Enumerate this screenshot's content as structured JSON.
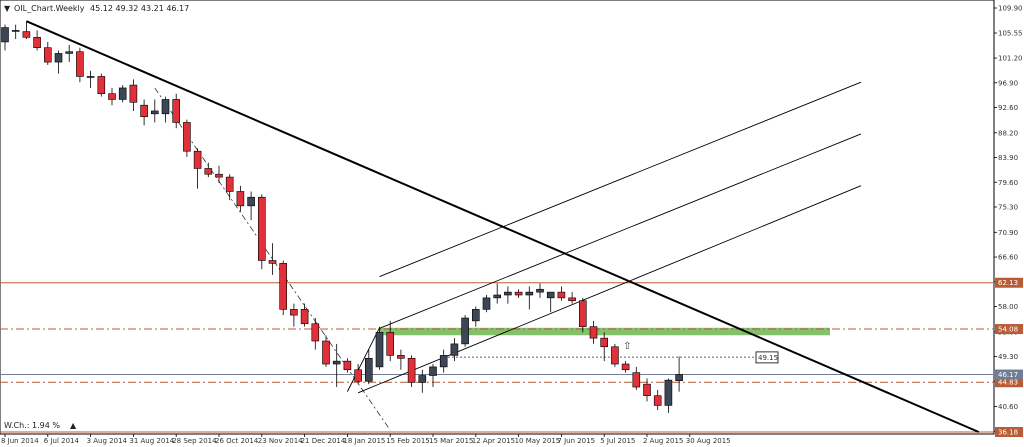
{
  "header": {
    "arrow": "▼",
    "symbol": "OIL_Chart.Weekly",
    "ohlc": "45.12 49.32 43.21 46.17"
  },
  "indicator": {
    "label": "W.Ch.: 1.94 %",
    "arrow": "▲",
    "color": "#2ea043"
  },
  "colors": {
    "bull": "#3d4654",
    "bear": "#e0303a",
    "level": "#b85c38",
    "green": "#5cab3c",
    "grid": "#e6e6e6"
  },
  "chart_data": {
    "type": "candlestick",
    "title": "OIL_Chart.Weekly",
    "ylim": [
      36.18,
      109.9
    ],
    "y_ticks": [
      "109.90",
      "105.55",
      "101.20",
      "96.90",
      "92.60",
      "88.20",
      "83.90",
      "79.60",
      "75.30",
      "70.90",
      "66.60",
      "62.30",
      "58.00",
      "53.60",
      "49.30",
      "45.00",
      "40.60",
      "36.30"
    ],
    "x_labels": [
      "8 Jun 2014",
      "6 Jul 2014",
      "3 Aug 2014",
      "31 Aug 2014",
      "28 Sep 2014",
      "26 Oct 2014",
      "23 Nov 2014",
      "21 Dec 2014",
      "18 Jan 2015",
      "15 Feb 2015",
      "15 Mar 2015",
      "12 Apr 2015",
      "10 May 2015",
      "7 Jun 2015",
      "5 Jul 2015",
      "2 Aug 2015",
      "30 Aug 2015"
    ],
    "candles": [
      {
        "o": 104.0,
        "h": 107.0,
        "l": 102.5,
        "c": 106.5
      },
      {
        "o": 106.0,
        "h": 107.0,
        "l": 104.5,
        "c": 106.0
      },
      {
        "o": 105.8,
        "h": 107.5,
        "l": 104.5,
        "c": 104.8
      },
      {
        "o": 104.8,
        "h": 106.0,
        "l": 102.5,
        "c": 103.0
      },
      {
        "o": 103.0,
        "h": 104.0,
        "l": 100.0,
        "c": 100.5
      },
      {
        "o": 100.5,
        "h": 102.5,
        "l": 98.5,
        "c": 102.0
      },
      {
        "o": 102.0,
        "h": 103.5,
        "l": 100.5,
        "c": 102.3
      },
      {
        "o": 102.3,
        "h": 103.0,
        "l": 97.0,
        "c": 98.0
      },
      {
        "o": 98.0,
        "h": 99.0,
        "l": 96.0,
        "c": 98.0
      },
      {
        "o": 98.0,
        "h": 98.5,
        "l": 94.5,
        "c": 95.0
      },
      {
        "o": 95.0,
        "h": 96.0,
        "l": 93.0,
        "c": 94.0
      },
      {
        "o": 94.0,
        "h": 96.5,
        "l": 93.5,
        "c": 96.0
      },
      {
        "o": 96.5,
        "h": 97.5,
        "l": 92.0,
        "c": 93.5
      },
      {
        "o": 93.0,
        "h": 94.0,
        "l": 89.5,
        "c": 91.0
      },
      {
        "o": 91.5,
        "h": 94.0,
        "l": 90.0,
        "c": 92.0
      },
      {
        "o": 91.5,
        "h": 94.5,
        "l": 90.0,
        "c": 94.0
      },
      {
        "o": 94.0,
        "h": 95.0,
        "l": 89.0,
        "c": 90.0
      },
      {
        "o": 90.0,
        "h": 90.5,
        "l": 84.0,
        "c": 85.0
      },
      {
        "o": 85.0,
        "h": 85.5,
        "l": 78.5,
        "c": 82.0
      },
      {
        "o": 82.0,
        "h": 83.0,
        "l": 80.5,
        "c": 81.0
      },
      {
        "o": 81.0,
        "h": 82.5,
        "l": 79.5,
        "c": 80.5
      },
      {
        "o": 80.5,
        "h": 81.0,
        "l": 76.5,
        "c": 78.0
      },
      {
        "o": 78.0,
        "h": 79.0,
        "l": 74.5,
        "c": 75.5
      },
      {
        "o": 75.5,
        "h": 78.0,
        "l": 73.0,
        "c": 77.0
      },
      {
        "o": 77.0,
        "h": 77.5,
        "l": 64.5,
        "c": 66.0
      },
      {
        "o": 66.0,
        "h": 69.0,
        "l": 63.5,
        "c": 65.5
      },
      {
        "o": 65.5,
        "h": 66.0,
        "l": 56.5,
        "c": 57.5
      },
      {
        "o": 57.5,
        "h": 58.5,
        "l": 54.5,
        "c": 56.5
      },
      {
        "o": 57.5,
        "h": 58.5,
        "l": 54.5,
        "c": 55.0
      },
      {
        "o": 55.0,
        "h": 56.0,
        "l": 50.5,
        "c": 52.0
      },
      {
        "o": 52.0,
        "h": 53.0,
        "l": 47.5,
        "c": 48.0
      },
      {
        "o": 48.0,
        "h": 51.5,
        "l": 44.0,
        "c": 48.5
      },
      {
        "o": 48.5,
        "h": 49.0,
        "l": 46.5,
        "c": 47.0
      },
      {
        "o": 47.0,
        "h": 48.0,
        "l": 44.5,
        "c": 45.0
      },
      {
        "o": 45.0,
        "h": 50.5,
        "l": 44.5,
        "c": 49.0
      },
      {
        "o": 47.5,
        "h": 54.5,
        "l": 47.0,
        "c": 53.5
      },
      {
        "o": 53.5,
        "h": 55.5,
        "l": 48.5,
        "c": 49.5
      },
      {
        "o": 49.5,
        "h": 50.5,
        "l": 47.0,
        "c": 49.0
      },
      {
        "o": 49.0,
        "h": 49.5,
        "l": 44.0,
        "c": 44.8
      },
      {
        "o": 44.8,
        "h": 47.0,
        "l": 43.0,
        "c": 46.0
      },
      {
        "o": 46.0,
        "h": 48.0,
        "l": 44.0,
        "c": 47.5
      },
      {
        "o": 47.5,
        "h": 50.5,
        "l": 46.5,
        "c": 49.5
      },
      {
        "o": 49.5,
        "h": 52.5,
        "l": 48.5,
        "c": 51.5
      },
      {
        "o": 51.5,
        "h": 56.5,
        "l": 51.0,
        "c": 56.0
      },
      {
        "o": 55.5,
        "h": 58.0,
        "l": 54.5,
        "c": 57.5
      },
      {
        "o": 57.5,
        "h": 60.0,
        "l": 57.0,
        "c": 59.5
      },
      {
        "o": 59.5,
        "h": 62.0,
        "l": 58.5,
        "c": 60.0
      },
      {
        "o": 60.0,
        "h": 61.5,
        "l": 58.5,
        "c": 60.5
      },
      {
        "o": 60.5,
        "h": 61.0,
        "l": 59.5,
        "c": 60.0
      },
      {
        "o": 60.0,
        "h": 61.5,
        "l": 57.5,
        "c": 60.5
      },
      {
        "o": 60.5,
        "h": 62.0,
        "l": 59.5,
        "c": 61.0
      },
      {
        "o": 59.5,
        "h": 60.5,
        "l": 57.0,
        "c": 60.5
      },
      {
        "o": 60.5,
        "h": 61.5,
        "l": 59.0,
        "c": 59.5
      },
      {
        "o": 59.5,
        "h": 60.5,
        "l": 58.5,
        "c": 59.0
      },
      {
        "o": 59.0,
        "h": 59.5,
        "l": 53.5,
        "c": 54.5
      },
      {
        "o": 54.5,
        "h": 55.5,
        "l": 51.5,
        "c": 52.5
      },
      {
        "o": 52.5,
        "h": 53.5,
        "l": 48.5,
        "c": 51.0
      },
      {
        "o": 51.0,
        "h": 51.5,
        "l": 47.5,
        "c": 48.0
      },
      {
        "o": 48.0,
        "h": 48.5,
        "l": 46.5,
        "c": 47.0
      },
      {
        "o": 46.5,
        "h": 47.5,
        "l": 43.5,
        "c": 44.0
      },
      {
        "o": 44.5,
        "h": 45.5,
        "l": 41.5,
        "c": 42.5
      },
      {
        "o": 42.5,
        "h": 43.5,
        "l": 40.0,
        "c": 40.8
      },
      {
        "o": 40.8,
        "h": 45.5,
        "l": 39.5,
        "c": 45.2
      },
      {
        "o": 45.1,
        "h": 49.3,
        "l": 43.2,
        "c": 46.17
      }
    ],
    "levels": [
      {
        "label": "62.13",
        "value": 62.13,
        "style": "solid",
        "color": "#b85c38"
      },
      {
        "label": "54.08",
        "value": 54.08,
        "style": "dashdot",
        "color": "#b85c38"
      },
      {
        "label": "44.83",
        "value": 44.83,
        "style": "dashdot",
        "color": "#b85c38"
      },
      {
        "label": "46.17",
        "value": 46.17,
        "style": "solid",
        "color": "#6f7d95"
      },
      {
        "label": "36.18",
        "value": 36.18,
        "style": "solid",
        "color": "#b85c38"
      }
    ],
    "green_zone": {
      "from": 53.0,
      "to": 54.3
    },
    "dotted_level": {
      "value": 49.2
    },
    "price_tag": {
      "label": "49.15",
      "value": 49.15
    },
    "trendline": {
      "from": {
        "i": 2,
        "v": 107.6
      },
      "to": {
        "i": 91,
        "v": 36.18
      }
    },
    "dashdot_line": {
      "from": {
        "i": 14,
        "v": 96.0
      },
      "to": {
        "i": 36,
        "v": 36.5
      }
    },
    "pitchfork": {
      "median": {
        "from": {
          "i": 35,
          "v": 54.2
        },
        "to": {
          "i": 80,
          "v": 88.0
        }
      },
      "upper": {
        "from": {
          "i": 35,
          "v": 63.2
        },
        "to": {
          "i": 80,
          "v": 97.0
        }
      },
      "lower": {
        "from": {
          "i": 33,
          "v": 43.0
        },
        "to": {
          "i": 80,
          "v": 79.0
        }
      },
      "handle": {
        "from": {
          "i": 32,
          "v": 43.2
        },
        "to": {
          "i": 35,
          "v": 54.3
        }
      }
    },
    "grid": false,
    "legend": "none"
  }
}
